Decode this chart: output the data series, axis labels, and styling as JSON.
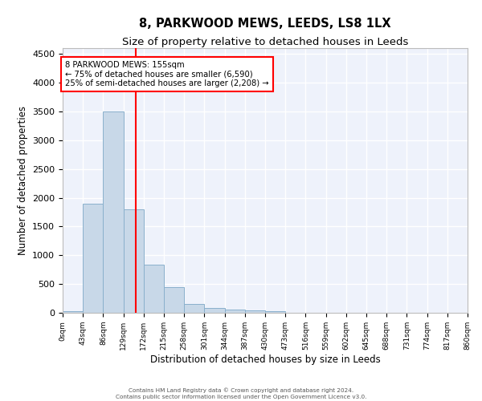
{
  "title": "8, PARKWOOD MEWS, LEEDS, LS8 1LX",
  "subtitle": "Size of property relative to detached houses in Leeds",
  "xlabel": "Distribution of detached houses by size in Leeds",
  "ylabel": "Number of detached properties",
  "annotation_line1": "8 PARKWOOD MEWS: 155sqm",
  "annotation_line2": "← 75% of detached houses are smaller (6,590)",
  "annotation_line3": "25% of semi-detached houses are larger (2,208) →",
  "marker_x": 155,
  "bin_edges": [
    0,
    43,
    86,
    129,
    172,
    215,
    258,
    301,
    344,
    387,
    430,
    473,
    516,
    559,
    602,
    645,
    688,
    731,
    774,
    817,
    860
  ],
  "bar_heights": [
    30,
    1900,
    3500,
    1800,
    830,
    450,
    160,
    90,
    55,
    40,
    30,
    0,
    0,
    0,
    0,
    0,
    0,
    0,
    0,
    0
  ],
  "bar_color": "#c8d8e8",
  "bar_edge_color": "#8ab0cc",
  "marker_color": "red",
  "ylim": [
    0,
    4600
  ],
  "xlim": [
    0,
    860
  ],
  "background_color": "#eef2fb",
  "grid_color": "white",
  "tick_labels": [
    "0sqm",
    "43sqm",
    "86sqm",
    "129sqm",
    "172sqm",
    "215sqm",
    "258sqm",
    "301sqm",
    "344sqm",
    "387sqm",
    "430sqm",
    "473sqm",
    "516sqm",
    "559sqm",
    "602sqm",
    "645sqm",
    "688sqm",
    "731sqm",
    "774sqm",
    "817sqm",
    "860sqm"
  ],
  "footer_line1": "Contains HM Land Registry data © Crown copyright and database right 2024.",
  "footer_line2": "Contains public sector information licensed under the Open Government Licence v3.0."
}
